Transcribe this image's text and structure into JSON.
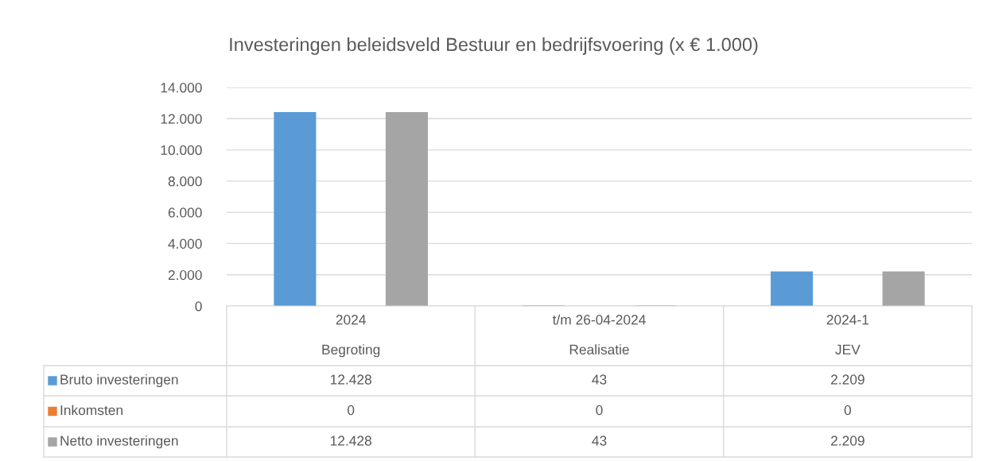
{
  "chart_data": {
    "type": "bar",
    "title": "Investeringen beleidsveld Bestuur en bedrijfsvoering (x € 1.000)",
    "categories": [
      "2024\nBegroting",
      "t/m 26-04-2024\nRealisatie",
      "2024-1\nJEV"
    ],
    "series": [
      {
        "name": "Bruto investeringen",
        "color": "#5b9bd5",
        "values": [
          12428,
          43,
          2209
        ],
        "value_labels": [
          "12.428",
          "43",
          "2.209"
        ]
      },
      {
        "name": "Inkomsten",
        "color": "#ed7d31",
        "values": [
          0,
          0,
          0
        ],
        "value_labels": [
          "0",
          "0",
          "0"
        ]
      },
      {
        "name": "Netto investeringen",
        "color": "#a5a5a5",
        "values": [
          12428,
          43,
          2209
        ],
        "value_labels": [
          "12.428",
          "43",
          "2.209"
        ]
      }
    ],
    "ylim": [
      0,
      14000
    ],
    "yticks": [
      {
        "value": 0,
        "label": "0"
      },
      {
        "value": 2000,
        "label": "2.000"
      },
      {
        "value": 4000,
        "label": "4.000"
      },
      {
        "value": 6000,
        "label": "6.000"
      },
      {
        "value": 8000,
        "label": "8.000"
      },
      {
        "value": 10000,
        "label": "10.000"
      },
      {
        "value": 12000,
        "label": "12.000"
      },
      {
        "value": 14000,
        "label": "14.000"
      }
    ],
    "grid": "y",
    "legend": "bottom"
  }
}
